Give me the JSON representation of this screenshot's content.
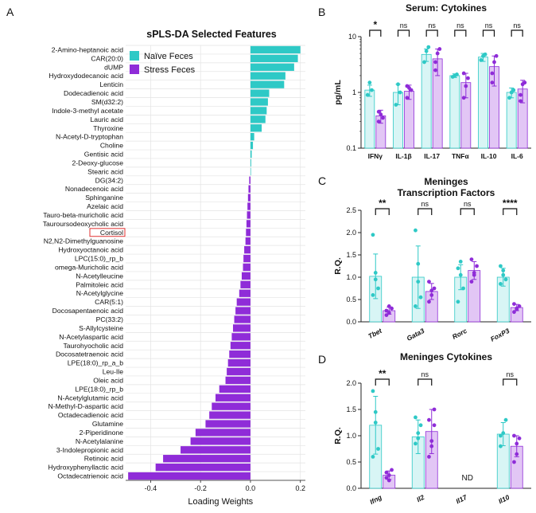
{
  "colors": {
    "naive": "#2EC9C6",
    "stress": "#8F2CD8",
    "naive_bar": "#D8F5F5",
    "stress_bar": "#E2C6F5",
    "highlight_box": "#E03030"
  },
  "panel_letters": [
    "A",
    "B",
    "C",
    "D"
  ],
  "chart_data": [
    {
      "panel": "A",
      "type": "bar",
      "orientation": "horizontal",
      "title": "sPLS-DA Selected Features",
      "xlabel": "Loading Weights",
      "xlim": [
        -0.5,
        0.22
      ],
      "xticks": [
        "-0.4",
        "-0.2",
        "0.0",
        "0.2"
      ],
      "grid": true,
      "legend_position": "top-right",
      "legend": [
        "Naïve Feces",
        "Stress Feces"
      ],
      "highlighted": "Cortisol",
      "features": [
        "2-Amino-heptanoic acid",
        "CAR(20:0)",
        "dUMP",
        "Hydroxydodecanoic acid",
        "Lenticin",
        "Dodecadienoic acid",
        "SM(d32:2)",
        "Indole-3-methyl acetate",
        "Lauric acid",
        "Thyroxine",
        "N-Acetyl-D-tryptophan",
        "Choline",
        "Gentisic acid",
        "2-Deoxy-glucose",
        "Stearic acid",
        "DG(34:2)",
        "Nonadecenoic acid",
        "Sphinganine",
        "Azelaic acid",
        "Tauro-beta-muricholic acid",
        "Tauroursodeoxycholic acid",
        "Cortisol",
        "N2,N2-Dimethylguanosine",
        "Hydroxyoctanoic acid",
        "LPC(15:0)_rp_b",
        "omega-Muricholic acid",
        "N-Acetylleucine",
        "Palmitoleic acid",
        "N-Acetylglycine",
        "CAR(5:1)",
        "Docosapentaenoic acid",
        "PC(33:2)",
        "S-Allylcysteine",
        "N-Acetylaspartic acid",
        "Taurohyocholic acid",
        "Docosatetraenoic acid",
        "LPE(18:0)_rp_a_b",
        "Leu-Ile",
        "Oleic acid",
        "LPE(18:0)_rp_b",
        "N-Acetylglutamic acid",
        "N-Methyl-D-aspartic acid",
        "Octadecadienoic acid",
        "Glutamine",
        "2-Piperidinone",
        "N-Acetylalanine",
        "3-Indolepropionic acid",
        "Retinoic acid",
        "Hydroxyphenyllactic acid",
        "Octadecatrienoic acid"
      ],
      "values": [
        0.2,
        0.19,
        0.175,
        0.14,
        0.135,
        0.075,
        0.07,
        0.065,
        0.06,
        0.045,
        0.015,
        0.01,
        0.005,
        0.003,
        0.002,
        -0.005,
        -0.008,
        -0.01,
        -0.012,
        -0.014,
        -0.016,
        -0.018,
        -0.02,
        -0.025,
        -0.028,
        -0.03,
        -0.035,
        -0.04,
        -0.045,
        -0.055,
        -0.06,
        -0.065,
        -0.07,
        -0.075,
        -0.08,
        -0.085,
        -0.09,
        -0.095,
        -0.1,
        -0.125,
        -0.14,
        -0.155,
        -0.165,
        -0.18,
        -0.22,
        -0.24,
        -0.28,
        -0.35,
        -0.38,
        -0.49
      ],
      "groups": [
        "naive",
        "naive",
        "naive",
        "naive",
        "naive",
        "naive",
        "naive",
        "naive",
        "naive",
        "naive",
        "naive",
        "naive",
        "naive",
        "naive",
        "naive",
        "stress",
        "stress",
        "stress",
        "stress",
        "stress",
        "stress",
        "stress",
        "stress",
        "stress",
        "stress",
        "stress",
        "stress",
        "stress",
        "stress",
        "stress",
        "stress",
        "stress",
        "stress",
        "stress",
        "stress",
        "stress",
        "stress",
        "stress",
        "stress",
        "stress",
        "stress",
        "stress",
        "stress",
        "stress",
        "stress",
        "stress",
        "stress",
        "stress",
        "stress",
        "stress"
      ]
    },
    {
      "panel": "B",
      "type": "bar",
      "title": "Serum: Cytokines",
      "ylabel": "pg/mL",
      "yscale": "log",
      "ylim": [
        0.1,
        10
      ],
      "yticks": [
        "0.1",
        "1",
        "10"
      ],
      "categories": [
        "IFNγ",
        "IL-1β",
        "IL-17",
        "TNFα",
        "IL-10",
        "IL-6"
      ],
      "significance": [
        "*",
        "ns",
        "ns",
        "ns",
        "ns",
        "ns"
      ],
      "series": [
        {
          "values": [
            1.1,
            1.0,
            4.8,
            2.0,
            4.3,
            1.0
          ],
          "err": [
            0.25,
            0.4,
            1.2,
            0.15,
            0.7,
            0.2
          ],
          "points": [
            [
              0.9,
              1.5,
              1.1
            ],
            [
              0.6,
              1.4,
              1.0
            ],
            [
              3.5,
              5.5,
              6.5
            ],
            [
              1.9,
              2.0,
              2.1
            ],
            [
              3.8,
              4.5,
              4.8
            ],
            [
              0.8,
              1.0,
              1.1
            ]
          ]
        },
        {
          "values": [
            0.38,
            1.05,
            4.0,
            1.5,
            2.9,
            1.15
          ],
          "err": [
            0.1,
            0.3,
            2.0,
            0.7,
            1.6,
            0.5
          ],
          "points": [
            [
              0.3,
              0.4,
              0.35,
              0.45
            ],
            [
              0.8,
              1.2,
              1.1,
              1.3
            ],
            [
              2.5,
              5.0,
              6.0,
              3.5
            ],
            [
              0.8,
              1.3,
              1.8,
              2.2
            ],
            [
              1.5,
              3.5,
              4.5,
              2.2
            ],
            [
              0.7,
              1.4,
              1.5,
              0.9
            ]
          ]
        }
      ]
    },
    {
      "panel": "C",
      "type": "bar",
      "title": "Meninges",
      "subtitle": "Transcription Factors",
      "ylabel": "R.Q.",
      "ylim": [
        0,
        2.5
      ],
      "yticks": [
        "0.0",
        "0.5",
        "1.0",
        "1.5",
        "2.0",
        "2.5"
      ],
      "categories": [
        "Tbet",
        "Gata3",
        "Rorc",
        "FoxP3"
      ],
      "significance": [
        "**",
        "ns",
        "ns",
        "****"
      ],
      "series": [
        {
          "values": [
            1.02,
            1.0,
            1.0,
            1.0
          ],
          "err": [
            0.5,
            0.7,
            0.28,
            0.2
          ],
          "points": [
            [
              1.95,
              0.95,
              0.75,
              0.6,
              1.1
            ],
            [
              2.05,
              1.3,
              0.55,
              0.35,
              0.9
            ],
            [
              1.2,
              1.05,
              0.75,
              0.45,
              1.35
            ],
            [
              1.25,
              1.05,
              0.95,
              0.85,
              1.15
            ]
          ]
        },
        {
          "values": [
            0.25,
            0.68,
            1.15,
            0.32
          ],
          "err": [
            0.08,
            0.18,
            0.2,
            0.07
          ],
          "points": [
            [
              0.15,
              0.2,
              0.3,
              0.25,
              0.35
            ],
            [
              0.45,
              0.6,
              0.75,
              0.9,
              0.7
            ],
            [
              0.9,
              1.05,
              1.25,
              1.4,
              1.1
            ],
            [
              0.22,
              0.3,
              0.35,
              0.4,
              0.28
            ]
          ]
        }
      ]
    },
    {
      "panel": "D",
      "type": "bar",
      "title": "Meninges Cytokines",
      "ylabel": "R.Q.",
      "ylim": [
        0,
        2.0
      ],
      "yticks": [
        "0.0",
        "0.5",
        "1.0",
        "1.5",
        "2.0"
      ],
      "categories": [
        "Ifng",
        "Il2",
        "Il17",
        "Il10"
      ],
      "significance": [
        "**",
        "ns",
        "",
        "ns"
      ],
      "annotation": {
        "category": "Il17",
        "text": "ND"
      },
      "series": [
        {
          "values": [
            1.2,
            0.98,
            null,
            1.03
          ],
          "err": [
            0.55,
            0.32,
            null,
            0.22
          ],
          "points": [
            [
              1.85,
              1.25,
              0.75,
              0.6,
              1.45
            ],
            [
              0.85,
              1.05,
              1.2,
              1.35,
              0.95
            ],
            [],
            [
              0.8,
              1.05,
              1.3,
              1.0
            ]
          ]
        },
        {
          "values": [
            0.25,
            1.08,
            null,
            0.8
          ],
          "err": [
            0.08,
            0.42,
            null,
            0.2
          ],
          "points": [
            [
              0.2,
              0.25,
              0.35,
              0.3,
              0.15
            ],
            [
              0.6,
              0.9,
              1.5,
              1.3,
              0.8,
              1.2
            ],
            [],
            [
              0.5,
              0.65,
              0.95,
              1.0,
              0.85
            ]
          ]
        }
      ]
    }
  ]
}
